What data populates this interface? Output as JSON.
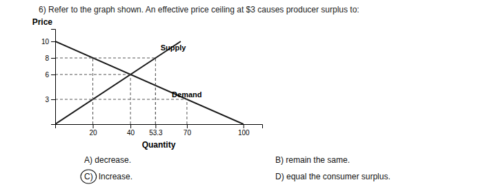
{
  "chart_data": {
    "type": "line",
    "title": "6) Refer to the graph shown. An effective price ceiling at $3 causes producer surplus to:",
    "xlabel": "Quantity",
    "ylabel": "Price",
    "xlim": [
      0,
      110
    ],
    "ylim": [
      0,
      11.5
    ],
    "xticks": [
      20,
      40,
      53.3,
      70,
      100
    ],
    "yticks": [
      3,
      6,
      8,
      10
    ],
    "grid": false,
    "series": [
      {
        "x": [
          0,
          66.7
        ],
        "values": [
          0,
          10
        ],
        "color": "#1a1a1a",
        "line_style": "solid"
      },
      {
        "x": [
          0,
          100
        ],
        "values": [
          10,
          0
        ],
        "color": "#1a1a1a",
        "line_style": "solid"
      },
      {
        "x": [
          0,
          53.3
        ],
        "values": [
          8,
          8
        ],
        "color": "#555555",
        "line_style": "dashed"
      },
      {
        "x": [
          20,
          20
        ],
        "values": [
          0,
          8
        ],
        "color": "#555555",
        "line_style": "dashed"
      },
      {
        "x": [
          53.3,
          53.3
        ],
        "values": [
          0,
          8
        ],
        "color": "#555555",
        "line_style": "dashed"
      },
      {
        "x": [
          0,
          40
        ],
        "values": [
          6,
          6
        ],
        "color": "#555555",
        "line_style": "dashed"
      },
      {
        "x": [
          40,
          40
        ],
        "values": [
          0,
          6
        ],
        "color": "#555555",
        "line_style": "dashed"
      },
      {
        "x": [
          53.3,
          53.3
        ],
        "values": [
          0,
          6
        ],
        "color": "#555555",
        "line_style": "dashed"
      },
      {
        "x": [
          0,
          70
        ],
        "values": [
          3,
          3
        ],
        "color": "#555555",
        "line_style": "dashed"
      },
      {
        "x": [
          20,
          20
        ],
        "values": [
          0,
          3
        ],
        "color": "#555555",
        "line_style": "dashed"
      },
      {
        "x": [
          70,
          70
        ],
        "values": [
          0,
          3
        ],
        "color": "#555555",
        "line_style": "dashed"
      }
    ],
    "annotations": [
      {
        "text": "Supply",
        "x": 56,
        "y": 9.2
      },
      {
        "text": "Demand",
        "x": 62,
        "y": 3.5
      }
    ],
    "answers": [
      "A) decrease.",
      "B) remain the same.",
      "C)",
      "Increase.",
      "D) equal the consumer surplus."
    ]
  }
}
